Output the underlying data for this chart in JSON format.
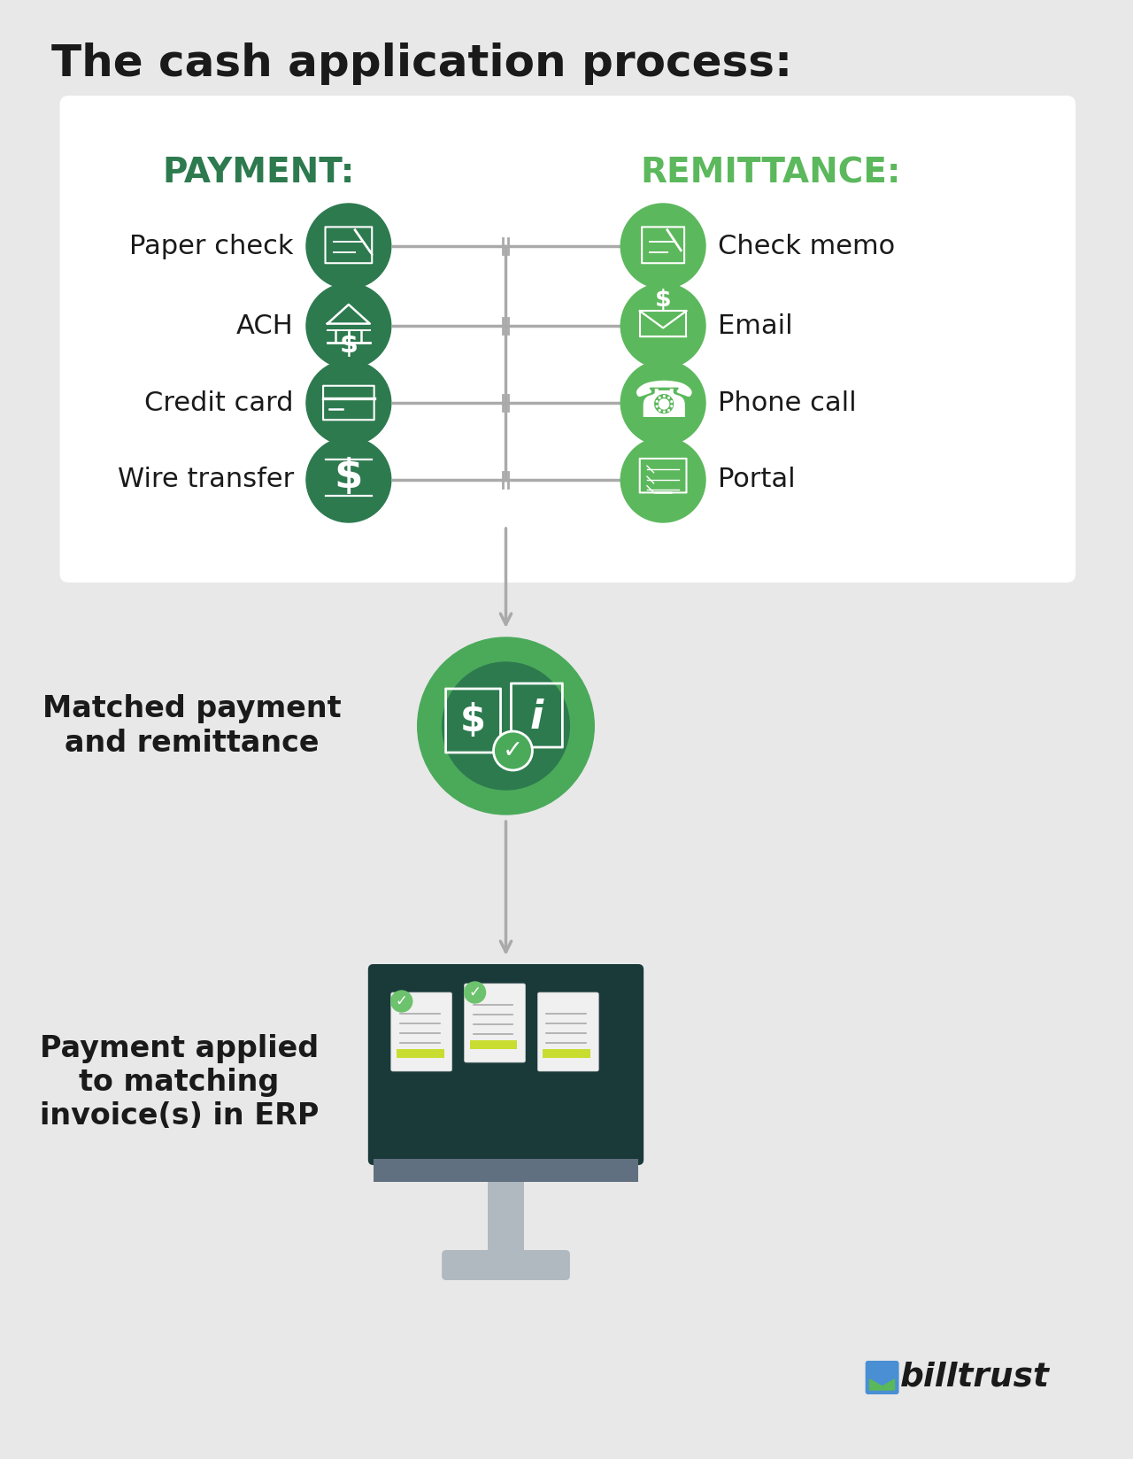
{
  "title": "The cash application process:",
  "bg_color": "#e8e8e8",
  "white_panel_color": "#ffffff",
  "dark_green": "#2d7a4f",
  "mid_green": "#5cb85c",
  "light_green": "#6dc26d",
  "arrow_color": "#aaaaaa",
  "text_dark": "#1a1a1a",
  "payment_label": "PAYMENT:",
  "remittance_label": "REMITTANCE:",
  "payment_items": [
    "Paper check",
    "ACH",
    "Credit card",
    "Wire transfer"
  ],
  "remittance_items": [
    "Check memo",
    "Email",
    "Phone call",
    "Portal"
  ],
  "matched_label": "Matched payment\nand remittance",
  "applied_label": "Payment applied\nto matching\ninvoice(s) in ERP",
  "monitor_color": "#1a3a3a",
  "monitor_stand_color": "#b0b8c0",
  "billtrust_text": "billtrust"
}
